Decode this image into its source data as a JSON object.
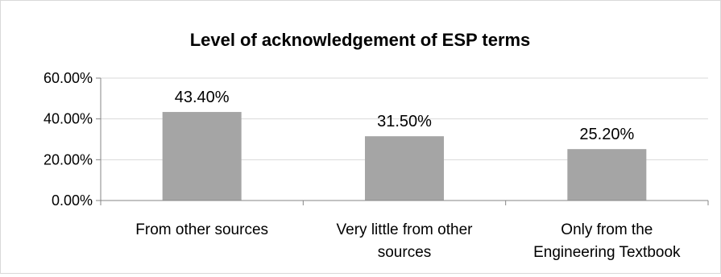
{
  "chart_data": {
    "type": "bar",
    "title": "Level of acknowledgement of ESP terms",
    "categories": [
      [
        "From other sources"
      ],
      [
        "Very little from other",
        "sources"
      ],
      [
        "Only from the",
        "Engineering Textbook"
      ]
    ],
    "values": [
      43.4,
      31.5,
      25.2
    ],
    "data_labels": [
      "43.40%",
      "31.50%",
      "25.20%"
    ],
    "y_ticks": [
      {
        "value": 0,
        "label": "0.00%"
      },
      {
        "value": 20,
        "label": "20.00%"
      },
      {
        "value": 40,
        "label": "40.00%"
      },
      {
        "value": 60,
        "label": "60.00%"
      }
    ],
    "ylim": [
      0,
      60
    ],
    "grid": true,
    "legend": "none",
    "bar_color": "#a5a5a5",
    "gridline_color": "#d9d9d9",
    "axis_color": "#868686"
  }
}
